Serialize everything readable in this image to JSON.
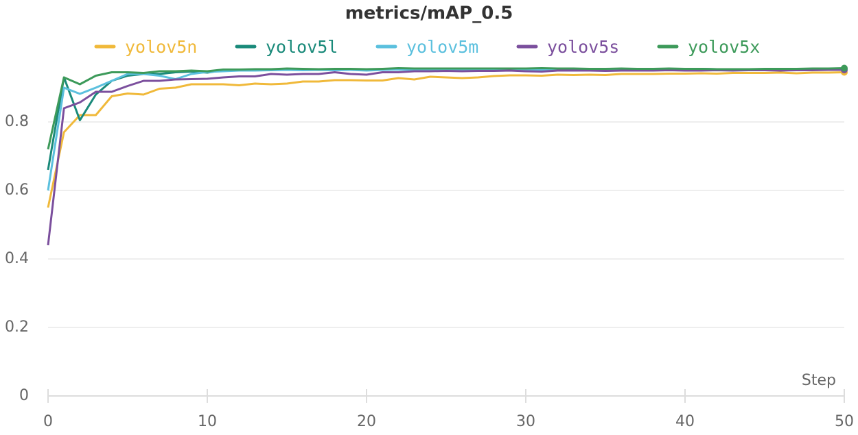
{
  "chart_data": {
    "type": "line",
    "title": "metrics/mAP_0.5",
    "x_label": "Step",
    "x": [
      0,
      1,
      2,
      3,
      4,
      5,
      6,
      7,
      8,
      9,
      10,
      11,
      12,
      13,
      14,
      15,
      16,
      17,
      18,
      19,
      20,
      21,
      22,
      23,
      24,
      25,
      26,
      27,
      28,
      29,
      30,
      31,
      32,
      33,
      34,
      35,
      36,
      37,
      38,
      39,
      40,
      41,
      42,
      43,
      44,
      45,
      46,
      47,
      48,
      49,
      50
    ],
    "xlim": [
      0,
      50
    ],
    "xticks": [
      0,
      10,
      20,
      30,
      40,
      50
    ],
    "ylim": [
      0,
      0.97
    ],
    "yticks": [
      0,
      0.2,
      0.4,
      0.6,
      0.8
    ],
    "grid": true,
    "series": [
      {
        "name": "yolov5n",
        "color": "#f0b93a",
        "values": [
          0.55,
          0.77,
          0.82,
          0.82,
          0.875,
          0.883,
          0.88,
          0.897,
          0.9,
          0.91,
          0.91,
          0.91,
          0.907,
          0.912,
          0.91,
          0.912,
          0.918,
          0.918,
          0.922,
          0.922,
          0.921,
          0.921,
          0.928,
          0.924,
          0.932,
          0.93,
          0.928,
          0.93,
          0.934,
          0.936,
          0.936,
          0.935,
          0.938,
          0.937,
          0.938,
          0.937,
          0.94,
          0.94,
          0.94,
          0.941,
          0.941,
          0.942,
          0.941,
          0.943,
          0.943,
          0.943,
          0.944,
          0.942,
          0.944,
          0.944,
          0.945
        ]
      },
      {
        "name": "yolov5l",
        "color": "#1a8a7a",
        "values": [
          0.66,
          0.93,
          0.805,
          0.88,
          0.92,
          0.935,
          0.94,
          0.94,
          0.945,
          0.947,
          0.944,
          0.951,
          0.95,
          0.952,
          0.953,
          0.955,
          0.953,
          0.952,
          0.953,
          0.954,
          0.952,
          0.954,
          0.956,
          0.954,
          0.955,
          0.954,
          0.955,
          0.954,
          0.955,
          0.956,
          0.955,
          0.956,
          0.955,
          0.955,
          0.954,
          0.955,
          0.955,
          0.954,
          0.955,
          0.954,
          0.955,
          0.955,
          0.954,
          0.954,
          0.953,
          0.954,
          0.952,
          0.954,
          0.954,
          0.955,
          0.955
        ]
      },
      {
        "name": "yolov5m",
        "color": "#5bc0de",
        "values": [
          0.6,
          0.9,
          0.882,
          0.9,
          0.92,
          0.94,
          0.94,
          0.935,
          0.925,
          0.94,
          0.946,
          0.948,
          0.95,
          0.95,
          0.951,
          0.952,
          0.951,
          0.952,
          0.951,
          0.952,
          0.95,
          0.952,
          0.953,
          0.952,
          0.953,
          0.953,
          0.952,
          0.953,
          0.953,
          0.953,
          0.952,
          0.953,
          0.953,
          0.952,
          0.953,
          0.952,
          0.953,
          0.953,
          0.952,
          0.953,
          0.953,
          0.952,
          0.953,
          0.952,
          0.953,
          0.952,
          0.952,
          0.953,
          0.953,
          0.953,
          0.953
        ]
      },
      {
        "name": "yolov5s",
        "color": "#7b4f9d",
        "values": [
          0.44,
          0.84,
          0.857,
          0.888,
          0.888,
          0.905,
          0.92,
          0.92,
          0.924,
          0.925,
          0.926,
          0.93,
          0.933,
          0.933,
          0.94,
          0.938,
          0.94,
          0.94,
          0.945,
          0.94,
          0.938,
          0.945,
          0.945,
          0.948,
          0.948,
          0.949,
          0.948,
          0.949,
          0.949,
          0.95,
          0.948,
          0.947,
          0.95,
          0.95,
          0.95,
          0.949,
          0.95,
          0.95,
          0.95,
          0.951,
          0.95,
          0.95,
          0.951,
          0.95,
          0.951,
          0.951,
          0.95,
          0.951,
          0.951,
          0.952,
          0.952
        ]
      },
      {
        "name": "yolov5x",
        "color": "#3d9a5a",
        "values": [
          0.72,
          0.93,
          0.91,
          0.935,
          0.945,
          0.945,
          0.943,
          0.948,
          0.948,
          0.95,
          0.948,
          0.953,
          0.953,
          0.954,
          0.954,
          0.956,
          0.955,
          0.954,
          0.955,
          0.955,
          0.954,
          0.955,
          0.957,
          0.956,
          0.956,
          0.956,
          0.956,
          0.956,
          0.956,
          0.956,
          0.956,
          0.957,
          0.956,
          0.956,
          0.955,
          0.955,
          0.956,
          0.955,
          0.955,
          0.956,
          0.955,
          0.955,
          0.954,
          0.954,
          0.954,
          0.955,
          0.955,
          0.955,
          0.956,
          0.956,
          0.957
        ]
      }
    ]
  }
}
